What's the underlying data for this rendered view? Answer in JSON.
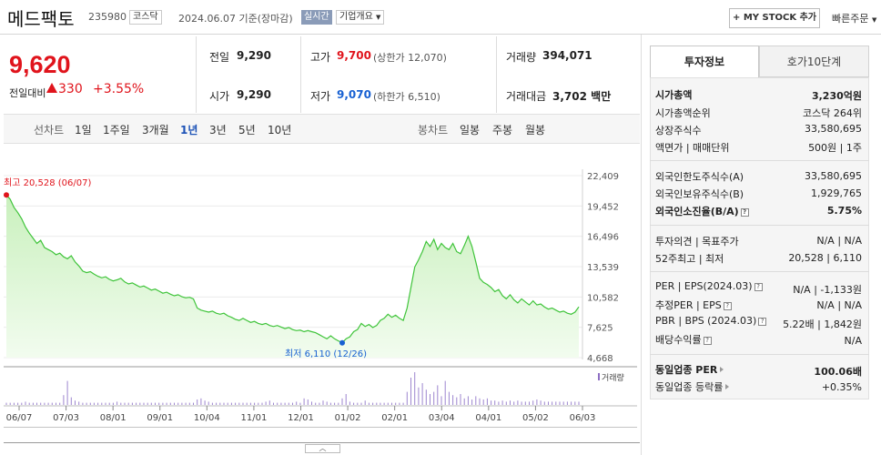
{
  "header": {
    "name": "메드팩토",
    "code": "235980",
    "market": "코스닥",
    "date": "2024.06.07  기준(장마감)",
    "realtime": "실시간",
    "company_overview": "기업개요",
    "mystock": "+ MY STOCK 추가",
    "quick_order": "빠른주문"
  },
  "price": {
    "current": "9,620",
    "compare_label": "전일대비",
    "change": "330",
    "change_pct": "+3.55%",
    "prev_label": "전일",
    "prev": "9,290",
    "high_label": "고가",
    "high": "9,700",
    "upper_limit": "(상한가 12,070)",
    "volume_label": "거래량",
    "volume": "394,071",
    "open_label": "시가",
    "open": "9,290",
    "low_label": "저가",
    "low": "9,070",
    "lower_limit": "(하한가 6,510)",
    "amount_label": "거래대금",
    "amount": "3,702",
    "amount_unit": "백만"
  },
  "periods": {
    "line_label": "선차트",
    "tabs": [
      "1일",
      "1주일",
      "3개월",
      "1년",
      "3년",
      "5년",
      "10년"
    ],
    "active": "1년",
    "candle_label": "봉차트",
    "candle_tabs": [
      "일봉",
      "주봉",
      "월봉"
    ]
  },
  "chart_data": {
    "type": "area",
    "y_ticks": [
      "22,409",
      "19,452",
      "16,496",
      "13,539",
      "10,582",
      "7,625",
      "4,668"
    ],
    "ylim": [
      4668,
      22409
    ],
    "x_ticks": [
      "06/07",
      "07/03",
      "08/01",
      "09/01",
      "10/04",
      "11/01",
      "12/01",
      "01/02",
      "02/01",
      "03/04",
      "04/01",
      "05/02",
      "06/03"
    ],
    "high_label": "최고 20,528 (06/07)",
    "low_label": "최저 6,110 (12/26)",
    "volume_label": "거래량",
    "series": [
      {
        "values": [
          20528,
          20100,
          19300,
          18800,
          18200,
          17400,
          16800,
          16300,
          15800,
          16100,
          15400,
          15200,
          15000,
          14700,
          14850,
          14500,
          14300,
          14600,
          14000,
          13600,
          13100,
          12950,
          13050,
          12800,
          12600,
          12450,
          12550,
          12300,
          12150,
          12250,
          12400,
          12050,
          11850,
          11950,
          11750,
          11550,
          11650,
          11450,
          11250,
          11350,
          11150,
          10950,
          11050,
          10850,
          10700,
          10800,
          10600,
          10500,
          10550,
          10400,
          9500,
          9300,
          9200,
          9100,
          9200,
          9000,
          8900,
          9000,
          8750,
          8600,
          8400,
          8300,
          8500,
          8300,
          8100,
          8200,
          8000,
          7900,
          8000,
          7800,
          7700,
          7800,
          7650,
          7500,
          7600,
          7400,
          7300,
          7350,
          7200,
          7300,
          7200,
          7100,
          6900,
          6700,
          6500,
          6800,
          6500,
          6300,
          6110,
          6500,
          6700,
          7200,
          7400,
          8000,
          7700,
          7900,
          7600,
          7800,
          8300,
          8500,
          8900,
          8600,
          8800,
          8500,
          8300,
          9500,
          11500,
          13500,
          14200,
          15000,
          16000,
          15500,
          16200,
          15200,
          15800,
          15400,
          15200,
          15800,
          15000,
          14800,
          15600,
          16500,
          15500,
          14000,
          12400,
          12000,
          11800,
          11500,
          11100,
          11300,
          10700,
          10400,
          10800,
          10300,
          10000,
          10400,
          10100,
          9800,
          10200,
          9800,
          9900,
          9600,
          9400,
          9500,
          9300,
          9100,
          9200,
          9000,
          8900,
          9100,
          9620
        ]
      }
    ],
    "volumes": [
      2,
      2,
      2,
      2,
      2,
      3,
      2,
      2,
      2,
      2,
      2,
      2,
      2,
      2,
      2,
      9,
      22,
      7,
      4,
      3,
      2,
      2,
      2,
      2,
      2,
      2,
      2,
      2,
      2,
      3,
      2,
      2,
      2,
      2,
      2,
      2,
      2,
      2,
      2,
      2,
      2,
      2,
      2,
      2,
      2,
      2,
      2,
      2,
      2,
      2,
      5,
      6,
      4,
      3,
      2,
      2,
      2,
      2,
      2,
      2,
      2,
      2,
      2,
      2,
      2,
      2,
      2,
      2,
      3,
      4,
      2,
      2,
      2,
      2,
      2,
      2,
      3,
      2,
      6,
      5,
      3,
      2,
      2,
      4,
      3,
      2,
      2,
      2,
      6,
      10,
      3,
      2,
      2,
      2,
      4,
      2,
      2,
      2,
      2,
      2,
      2,
      2,
      2,
      2,
      2,
      12,
      25,
      30,
      16,
      20,
      14,
      10,
      12,
      18,
      8,
      22,
      12,
      9,
      7,
      10,
      6,
      8,
      5,
      8,
      6,
      5,
      6,
      4,
      4,
      3,
      4,
      3,
      4,
      3,
      4,
      3,
      3,
      3,
      4,
      5,
      4,
      3,
      3,
      3,
      3,
      3,
      3,
      3,
      3,
      3,
      3
    ]
  },
  "invest": {
    "tab_invest": "투자정보",
    "tab_orderbook": "호가10단계",
    "market_cap_label": "시가총액",
    "market_cap": "3,230억원",
    "market_cap_rank_label": "시가총액순위",
    "market_cap_rank": "코스닥 264위",
    "shares_label": "상장주식수",
    "shares": "33,580,695",
    "par_label": "액면가 | 매매단위",
    "par": "500원  |  1주",
    "foreign_limit_label": "외국인한도주식수(A)",
    "foreign_limit": "33,580,695",
    "foreign_hold_label": "외국인보유주식수(B)",
    "foreign_hold": "1,929,765",
    "foreign_ratio_label": "외국인소진율(B/A)",
    "foreign_ratio": "5.75%",
    "opinion_label": "투자의견 | 목표주가",
    "opinion": "N/A  |  N/A",
    "week52_label": "52주최고 | 최저",
    "week52": "20,528  |  6,110",
    "per_label": "PER | EPS(2024.03)",
    "per": "N/A  |  -1,133원",
    "est_per_label": "추정PER | EPS",
    "est_per": "N/A  |  N/A",
    "pbr_label": "PBR | BPS (2024.03)",
    "pbr": "5.22배  |  1,842원",
    "div_label": "배당수익률",
    "div": "N/A",
    "sector_per_label": "동일업종 PER",
    "sector_per": "100.06배",
    "sector_rate_label": "동일업종 등락률",
    "sector_rate": "+0.35%"
  },
  "colors": {
    "up": "#e0141c",
    "down": "#1760d2",
    "line": "#3fc43a",
    "area": "#dff7d6"
  }
}
